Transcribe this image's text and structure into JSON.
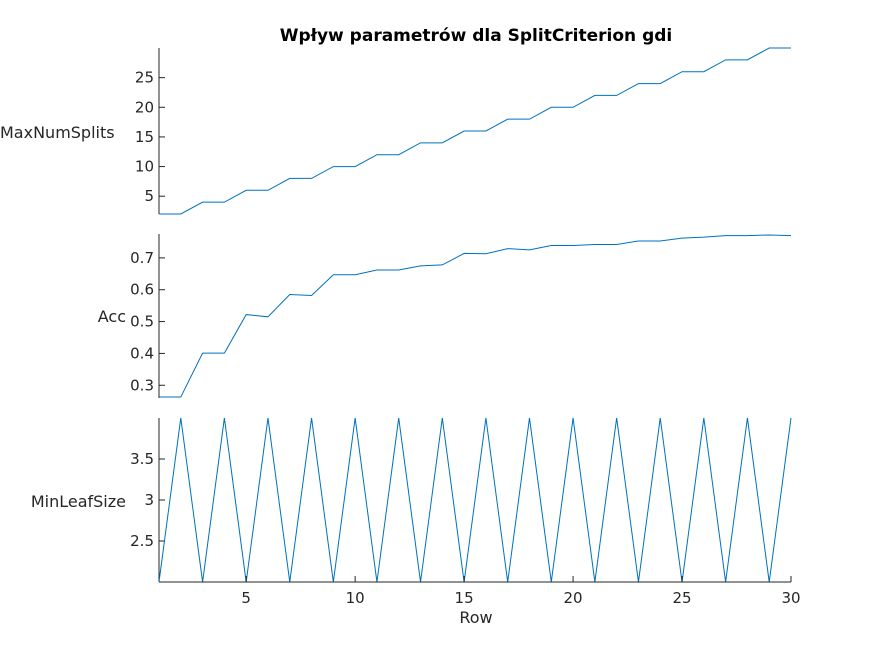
{
  "chart_data": {
    "type": "line",
    "title": "Wpływ parametrów dla SplitCriterion gdi",
    "xlabel": "Row",
    "xlim": [
      1,
      30
    ],
    "x_ticks": [
      5,
      10,
      15,
      20,
      25,
      30
    ],
    "x_tick_labels": [
      "5",
      "10",
      "15",
      "20",
      "25",
      "30"
    ],
    "x": [
      1,
      2,
      3,
      4,
      5,
      6,
      7,
      8,
      9,
      10,
      11,
      12,
      13,
      14,
      15,
      16,
      17,
      18,
      19,
      20,
      21,
      22,
      23,
      24,
      25,
      26,
      27,
      28,
      29,
      30
    ],
    "color": "#0072bd",
    "grid": false,
    "panels": [
      {
        "ylabel": "MaxNumSplits",
        "ylim": [
          2,
          30
        ],
        "y_ticks": [
          5,
          10,
          15,
          20,
          25
        ],
        "y_tick_labels": [
          "5",
          "10",
          "15",
          "20",
          "25"
        ],
        "values": [
          2,
          2,
          4,
          4,
          6,
          6,
          8,
          8,
          10,
          10,
          12,
          12,
          14,
          14,
          16,
          16,
          18,
          18,
          20,
          20,
          22,
          22,
          24,
          24,
          26,
          26,
          28,
          28,
          30,
          30
        ]
      },
      {
        "ylabel": "Acc",
        "ylim": [
          0.26,
          0.775
        ],
        "y_ticks": [
          0.3,
          0.4,
          0.5,
          0.6,
          0.7
        ],
        "y_tick_labels": [
          "0.3",
          "0.4",
          "0.5",
          "0.6",
          "0.7"
        ],
        "values": [
          0.263,
          0.263,
          0.401,
          0.401,
          0.522,
          0.515,
          0.585,
          0.582,
          0.647,
          0.647,
          0.662,
          0.662,
          0.675,
          0.678,
          0.714,
          0.713,
          0.729,
          0.725,
          0.739,
          0.739,
          0.742,
          0.742,
          0.753,
          0.753,
          0.762,
          0.765,
          0.77,
          0.77,
          0.772,
          0.77
        ]
      },
      {
        "ylabel": "MinLeafSize",
        "ylim": [
          2,
          4
        ],
        "y_ticks": [
          2.5,
          3,
          3.5
        ],
        "y_tick_labels": [
          "2.5",
          "3",
          "3.5"
        ],
        "values": [
          2,
          4,
          2,
          4,
          2,
          4,
          2,
          4,
          2,
          4,
          2,
          4,
          2,
          4,
          2,
          4,
          2,
          4,
          2,
          4,
          2,
          4,
          2,
          4,
          2,
          4,
          2,
          4,
          2,
          4
        ]
      }
    ]
  }
}
